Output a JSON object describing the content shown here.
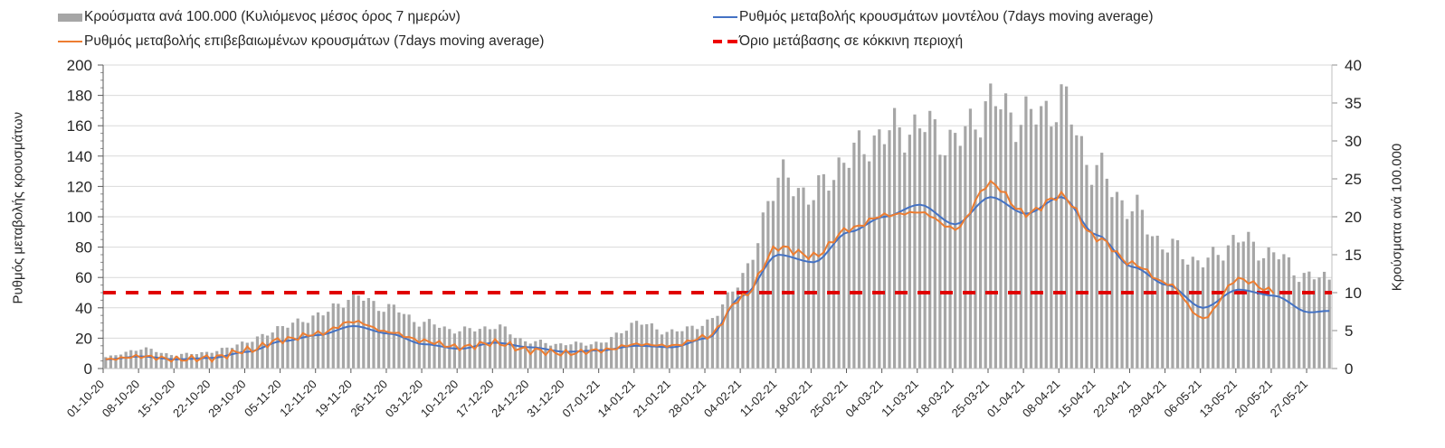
{
  "chart_data": {
    "type": "bar+line",
    "legend": [
      {
        "key": "bars",
        "label": "Κρούσματα ανά 100.000 (Κυλιόμενος μέσος όρος 7 ημερών)",
        "color": "#a6a6a6"
      },
      {
        "key": "model",
        "label": "Ρυθμός μεταβολής κρουσμάτων μοντέλου (7days moving average)",
        "color": "#4472c4"
      },
      {
        "key": "confirmed",
        "label": "Ρυθμός μεταβολής επιβεβαιωμένων κρουσμάτων (7days moving average)",
        "color": "#ed7d31"
      },
      {
        "key": "threshold",
        "label": "Όριο μετάβασης σε κόκκινη περιοχή",
        "color": "#e00000"
      }
    ],
    "legend_position": "top",
    "ylabel_left": "Ρυθμός μεταβολής κρουσμάτων",
    "ylabel_right": "Κρούσματα ανά 100.000",
    "ylim_left": [
      0,
      200
    ],
    "ylim_right": [
      0,
      40
    ],
    "yticks_left": [
      "0",
      "20",
      "40",
      "60",
      "80",
      "100",
      "120",
      "140",
      "160",
      "180",
      "200"
    ],
    "yticks_right": [
      "0",
      "5",
      "10",
      "15",
      "20",
      "25",
      "30",
      "35",
      "40"
    ],
    "x_tick_labels": [
      "01-10-20",
      "08-10-20",
      "15-10-20",
      "22-10-20",
      "29-10-20",
      "05-11-20",
      "12-11-20",
      "19-11-20",
      "26-11-20",
      "03-12-20",
      "10-12-20",
      "17-12-20",
      "24-12-20",
      "31-12-20",
      "07-01-21",
      "14-01-21",
      "21-01-21",
      "28-01-21",
      "04-02-21",
      "11-02-21",
      "18-02-21",
      "25-02-21",
      "04-03-21",
      "11-03-21",
      "18-03-21",
      "25-03-21",
      "01-04-21",
      "08-04-21",
      "15-04-21",
      "22-04-21",
      "29-04-21",
      "06-05-21",
      "13-05-21",
      "20-05-21",
      "27-05-21"
    ],
    "grid": "horizontal",
    "threshold_value": 50,
    "keypoints_day_index": [
      0,
      7,
      14,
      21,
      28,
      35,
      42,
      49,
      56,
      63,
      70,
      77,
      84,
      91,
      98,
      105,
      112,
      119,
      126,
      133,
      140,
      147,
      154,
      161,
      168,
      175,
      182,
      189,
      196,
      203,
      210,
      217,
      224,
      231,
      238,
      242
    ],
    "bars_per100k": [
      1.5,
      2.6,
      1.8,
      2.2,
      3.5,
      5.5,
      7,
      9.5,
      8,
      6,
      5,
      5.5,
      3.5,
      3.2,
      3.4,
      6,
      4.8,
      6,
      12,
      25,
      23,
      28,
      31,
      32,
      30,
      35,
      33,
      35,
      26,
      21,
      16,
      14,
      17,
      15,
      12,
      12
    ],
    "model_rate": [
      6,
      8,
      6,
      7,
      11,
      18,
      22,
      28,
      23,
      16,
      13,
      17,
      14,
      11,
      12,
      15,
      14,
      20,
      48,
      75,
      70,
      90,
      100,
      108,
      95,
      113,
      102,
      113,
      88,
      67,
      55,
      40,
      52,
      48,
      37,
      38
    ],
    "confirmed_rate": [
      6,
      8,
      6,
      7,
      12,
      19,
      23,
      31,
      24,
      18,
      14,
      17,
      12,
      10,
      12,
      16,
      15,
      21,
      47,
      80,
      74,
      92,
      101,
      103,
      92,
      122,
      102,
      114,
      86,
      69,
      56,
      33,
      59,
      51,
      null,
      null
    ]
  }
}
